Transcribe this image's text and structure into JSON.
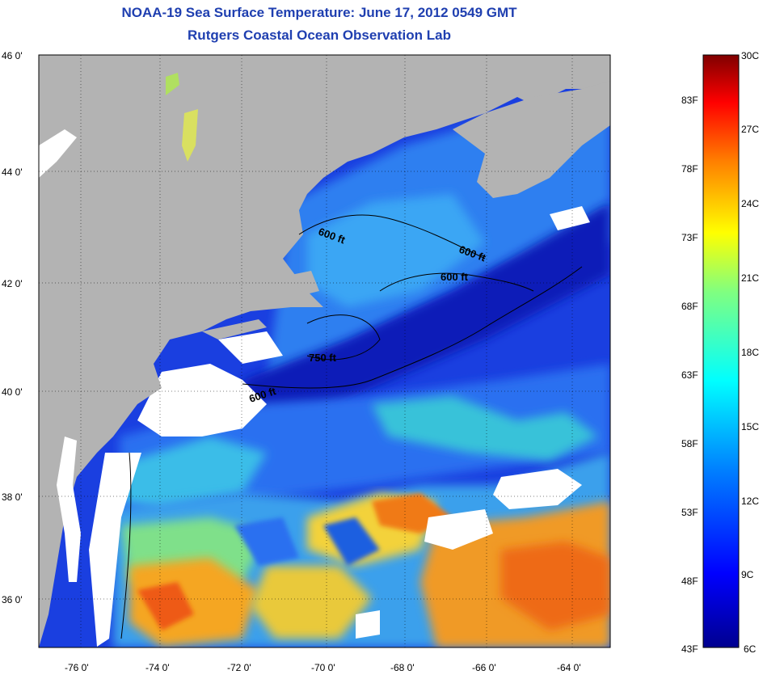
{
  "header": {
    "title": "NOAA-19 Sea Surface Temperature:  June 17, 2012 0549 GMT",
    "subtitle": "Rutgers Coastal Ocean Observation Lab"
  },
  "map": {
    "lat_ticks": [
      "46 0'",
      "44 0'",
      "42 0'",
      "40 0'",
      "38 0'",
      "36 0'"
    ],
    "lon_ticks": [
      "-76 0'",
      "-74 0'",
      "-72 0'",
      "-70 0'",
      "-68 0'",
      "-66 0'",
      "-64 0'"
    ],
    "contour_labels": [
      "600 ft",
      "600 ft",
      "600 ft",
      "750 ft",
      "600 ft"
    ],
    "colors": {
      "land": "#b3b3b3",
      "cloud": "#ffffff",
      "frame": "#000000"
    }
  },
  "colorbar": {
    "celsius": [
      "30C",
      "27C",
      "24C",
      "21C",
      "18C",
      "15C",
      "12C",
      "9C",
      "6C"
    ],
    "fahrenheit": [
      "83F",
      "78F",
      "73F",
      "68F",
      "63F",
      "58F",
      "53F",
      "48F",
      "43F"
    ],
    "stops": [
      "#00008f",
      "#0000ff",
      "#0080ff",
      "#00ffff",
      "#80ff80",
      "#ffff00",
      "#ff8000",
      "#ff0000",
      "#800000"
    ]
  }
}
